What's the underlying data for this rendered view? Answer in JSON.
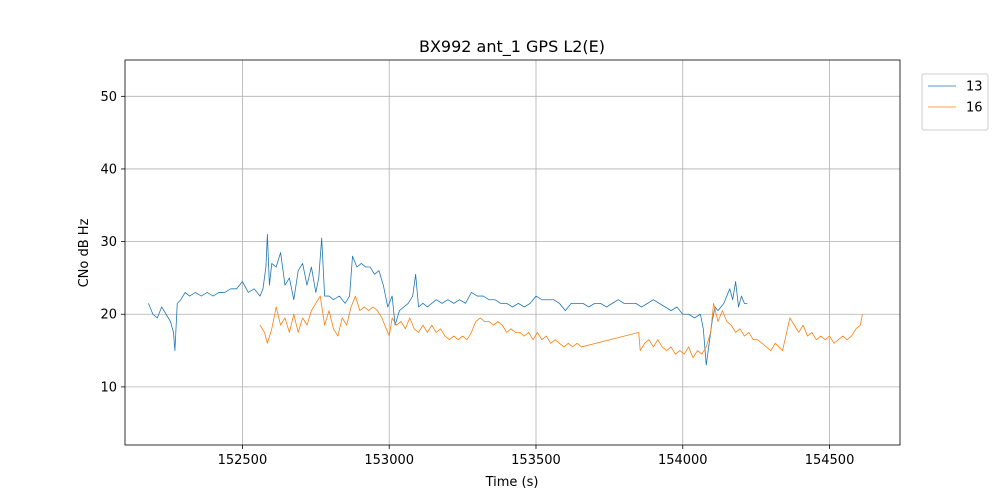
{
  "chart_data": {
    "type": "line",
    "title": "BX992 ant_1 GPS L2(E)",
    "xlabel": "Time (s)",
    "ylabel": "CNo dB Hz",
    "xlim": [
      152100,
      154740
    ],
    "ylim": [
      2,
      55
    ],
    "xticks": [
      152500,
      153000,
      153500,
      154000,
      154500
    ],
    "yticks": [
      10,
      20,
      30,
      40,
      50
    ],
    "grid": true,
    "legend_position": "outside-top-right",
    "series": [
      {
        "name": "13",
        "color": "#1f77b4",
        "points": [
          [
            152180,
            21.5
          ],
          [
            152195,
            20.0
          ],
          [
            152210,
            19.5
          ],
          [
            152225,
            21.0
          ],
          [
            152240,
            20.0
          ],
          [
            152255,
            19.0
          ],
          [
            152265,
            17.5
          ],
          [
            152270,
            15.0
          ],
          [
            152278,
            21.5
          ],
          [
            152290,
            22.0
          ],
          [
            152305,
            23.0
          ],
          [
            152320,
            22.5
          ],
          [
            152340,
            23.0
          ],
          [
            152360,
            22.5
          ],
          [
            152380,
            23.0
          ],
          [
            152400,
            22.5
          ],
          [
            152420,
            23.0
          ],
          [
            152440,
            23.0
          ],
          [
            152460,
            23.5
          ],
          [
            152480,
            23.5
          ],
          [
            152500,
            24.5
          ],
          [
            152520,
            23.0
          ],
          [
            152540,
            23.5
          ],
          [
            152560,
            22.5
          ],
          [
            152570,
            23.5
          ],
          [
            152580,
            26.5
          ],
          [
            152585,
            31.0
          ],
          [
            152592,
            24.0
          ],
          [
            152600,
            27.0
          ],
          [
            152615,
            26.5
          ],
          [
            152630,
            28.5
          ],
          [
            152645,
            24.0
          ],
          [
            152660,
            25.0
          ],
          [
            152675,
            22.0
          ],
          [
            152690,
            26.0
          ],
          [
            152705,
            27.0
          ],
          [
            152720,
            24.0
          ],
          [
            152735,
            26.5
          ],
          [
            152750,
            23.0
          ],
          [
            152760,
            25.0
          ],
          [
            152770,
            30.5
          ],
          [
            152780,
            22.5
          ],
          [
            152795,
            22.5
          ],
          [
            152810,
            22.0
          ],
          [
            152830,
            22.5
          ],
          [
            152850,
            21.5
          ],
          [
            152865,
            22.5
          ],
          [
            152875,
            28.0
          ],
          [
            152890,
            26.5
          ],
          [
            152905,
            27.0
          ],
          [
            152920,
            26.5
          ],
          [
            152935,
            26.5
          ],
          [
            152950,
            25.5
          ],
          [
            152965,
            26.0
          ],
          [
            152980,
            24.0
          ],
          [
            152995,
            21.0
          ],
          [
            153010,
            22.5
          ],
          [
            153020,
            18.5
          ],
          [
            153035,
            20.5
          ],
          [
            153050,
            21.0
          ],
          [
            153065,
            21.5
          ],
          [
            153080,
            22.5
          ],
          [
            153090,
            25.5
          ],
          [
            153100,
            21.0
          ],
          [
            153115,
            21.5
          ],
          [
            153130,
            21.0
          ],
          [
            153145,
            21.5
          ],
          [
            153160,
            22.0
          ],
          [
            153180,
            21.5
          ],
          [
            153200,
            22.0
          ],
          [
            153220,
            21.5
          ],
          [
            153240,
            22.0
          ],
          [
            153260,
            21.5
          ],
          [
            153280,
            23.0
          ],
          [
            153300,
            22.5
          ],
          [
            153320,
            22.5
          ],
          [
            153340,
            22.0
          ],
          [
            153360,
            22.0
          ],
          [
            153380,
            21.5
          ],
          [
            153400,
            21.5
          ],
          [
            153420,
            21.0
          ],
          [
            153440,
            21.5
          ],
          [
            153460,
            21.0
          ],
          [
            153480,
            21.5
          ],
          [
            153500,
            22.5
          ],
          [
            153520,
            22.0
          ],
          [
            153540,
            22.0
          ],
          [
            153560,
            22.0
          ],
          [
            153580,
            21.5
          ],
          [
            153600,
            20.5
          ],
          [
            153620,
            21.5
          ],
          [
            153640,
            21.5
          ],
          [
            153660,
            21.5
          ],
          [
            153680,
            21.0
          ],
          [
            153700,
            21.5
          ],
          [
            153720,
            21.5
          ],
          [
            153740,
            21.0
          ],
          [
            153760,
            21.5
          ],
          [
            153780,
            22.0
          ],
          [
            153800,
            21.5
          ],
          [
            153820,
            21.5
          ],
          [
            153840,
            21.5
          ],
          [
            153860,
            21.0
          ],
          [
            153880,
            21.5
          ],
          [
            153900,
            22.0
          ],
          [
            153920,
            21.5
          ],
          [
            153940,
            21.0
          ],
          [
            153960,
            20.5
          ],
          [
            153980,
            21.0
          ],
          [
            154000,
            20.0
          ],
          [
            154020,
            20.0
          ],
          [
            154040,
            19.5
          ],
          [
            154060,
            20.0
          ],
          [
            154070,
            18.0
          ],
          [
            154080,
            13.0
          ],
          [
            154090,
            16.0
          ],
          [
            154100,
            19.0
          ],
          [
            154110,
            21.0
          ],
          [
            154120,
            20.5
          ],
          [
            154130,
            21.0
          ],
          [
            154140,
            21.5
          ],
          [
            154150,
            22.5
          ],
          [
            154160,
            23.5
          ],
          [
            154170,
            22.0
          ],
          [
            154180,
            24.5
          ],
          [
            154190,
            21.0
          ],
          [
            154200,
            22.5
          ],
          [
            154210,
            21.5
          ],
          [
            154220,
            21.5
          ]
        ]
      },
      {
        "name": "16",
        "color": "#ff7f0e",
        "points": [
          [
            152560,
            18.5
          ],
          [
            152575,
            17.5
          ],
          [
            152585,
            16.0
          ],
          [
            152600,
            18.0
          ],
          [
            152615,
            21.0
          ],
          [
            152630,
            18.5
          ],
          [
            152645,
            19.5
          ],
          [
            152660,
            17.5
          ],
          [
            152675,
            20.0
          ],
          [
            152690,
            17.5
          ],
          [
            152705,
            19.5
          ],
          [
            152720,
            18.5
          ],
          [
            152735,
            20.5
          ],
          [
            152750,
            21.5
          ],
          [
            152765,
            22.5
          ],
          [
            152780,
            18.5
          ],
          [
            152795,
            20.5
          ],
          [
            152810,
            18.0
          ],
          [
            152825,
            17.0
          ],
          [
            152840,
            19.5
          ],
          [
            152855,
            18.5
          ],
          [
            152870,
            21.0
          ],
          [
            152885,
            22.5
          ],
          [
            152900,
            20.5
          ],
          [
            152915,
            21.0
          ],
          [
            152930,
            20.5
          ],
          [
            152945,
            21.0
          ],
          [
            152960,
            20.5
          ],
          [
            152975,
            19.5
          ],
          [
            152990,
            18.0
          ],
          [
            153000,
            17.0
          ],
          [
            153010,
            19.5
          ],
          [
            153025,
            18.5
          ],
          [
            153040,
            19.0
          ],
          [
            153055,
            18.0
          ],
          [
            153070,
            19.5
          ],
          [
            153085,
            18.0
          ],
          [
            153100,
            17.5
          ],
          [
            153115,
            18.5
          ],
          [
            153130,
            17.5
          ],
          [
            153145,
            18.5
          ],
          [
            153160,
            17.5
          ],
          [
            153175,
            18.0
          ],
          [
            153190,
            17.0
          ],
          [
            153205,
            16.5
          ],
          [
            153220,
            17.0
          ],
          [
            153235,
            16.5
          ],
          [
            153250,
            17.0
          ],
          [
            153265,
            16.5
          ],
          [
            153280,
            17.5
          ],
          [
            153295,
            19.0
          ],
          [
            153310,
            19.5
          ],
          [
            153325,
            19.0
          ],
          [
            153340,
            19.0
          ],
          [
            153355,
            18.5
          ],
          [
            153370,
            19.0
          ],
          [
            153385,
            18.5
          ],
          [
            153400,
            17.5
          ],
          [
            153415,
            18.0
          ],
          [
            153430,
            17.5
          ],
          [
            153445,
            17.5
          ],
          [
            153460,
            17.0
          ],
          [
            153475,
            17.5
          ],
          [
            153490,
            16.5
          ],
          [
            153505,
            17.5
          ],
          [
            153520,
            16.5
          ],
          [
            153535,
            17.0
          ],
          [
            153550,
            16.0
          ],
          [
            153565,
            16.5
          ],
          [
            153580,
            16.0
          ],
          [
            153595,
            15.5
          ],
          [
            153610,
            16.0
          ],
          [
            153625,
            15.5
          ],
          [
            153640,
            16.0
          ],
          [
            153655,
            15.5
          ],
          [
            153850,
            17.5
          ],
          [
            153855,
            15.0
          ],
          [
            153870,
            16.0
          ],
          [
            153885,
            16.5
          ],
          [
            153900,
            15.5
          ],
          [
            153915,
            16.5
          ],
          [
            153930,
            15.5
          ],
          [
            153945,
            15.0
          ],
          [
            153960,
            15.5
          ],
          [
            153975,
            14.5
          ],
          [
            153990,
            15.0
          ],
          [
            154005,
            14.5
          ],
          [
            154020,
            15.5
          ],
          [
            154035,
            14.0
          ],
          [
            154050,
            15.0
          ],
          [
            154065,
            14.5
          ],
          [
            154080,
            15.5
          ],
          [
            154095,
            17.5
          ],
          [
            154105,
            21.5
          ],
          [
            154120,
            19.0
          ],
          [
            154135,
            20.5
          ],
          [
            154150,
            19.0
          ],
          [
            154165,
            18.5
          ],
          [
            154180,
            17.5
          ],
          [
            154195,
            18.0
          ],
          [
            154210,
            17.0
          ],
          [
            154225,
            17.5
          ],
          [
            154240,
            16.5
          ],
          [
            154255,
            16.5
          ],
          [
            154270,
            16.0
          ],
          [
            154285,
            15.5
          ],
          [
            154300,
            15.0
          ],
          [
            154315,
            16.0
          ],
          [
            154340,
            15.0
          ],
          [
            154365,
            19.5
          ],
          [
            154380,
            18.5
          ],
          [
            154395,
            17.5
          ],
          [
            154410,
            18.5
          ],
          [
            154425,
            17.0
          ],
          [
            154440,
            17.5
          ],
          [
            154455,
            16.5
          ],
          [
            154470,
            17.0
          ],
          [
            154485,
            16.5
          ],
          [
            154500,
            17.0
          ],
          [
            154515,
            16.0
          ],
          [
            154530,
            16.5
          ],
          [
            154545,
            17.0
          ],
          [
            154560,
            16.5
          ],
          [
            154575,
            17.0
          ],
          [
            154590,
            18.0
          ],
          [
            154605,
            18.5
          ],
          [
            154612,
            20.0
          ]
        ]
      }
    ]
  }
}
